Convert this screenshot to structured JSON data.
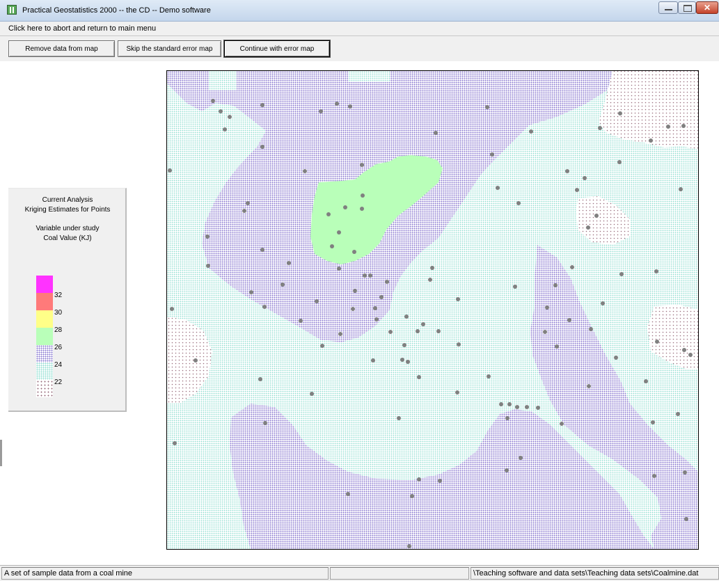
{
  "window": {
    "title": "Practical Geostatistics 2000 -- the CD  -- Demo software"
  },
  "abort_bar": {
    "text": "Click here to abort and return to main menu"
  },
  "toolbar": {
    "buttons": [
      "Remove data from map",
      "Skip the standard error map",
      "Continue with error map"
    ]
  },
  "legend_panel": {
    "heading": "Current Analysis",
    "analysis": "Kriging Estimates for Points",
    "variable_heading": "Variable under study",
    "variable": "Coal Value (KJ)",
    "ticks": [
      "32",
      "30",
      "28",
      "26",
      "24",
      "22"
    ],
    "colors": {
      "above_32": "#ff33ff",
      "30_32": "#ff7a7a",
      "28_30": "#ffff88",
      "26_28": "#b9ffb9",
      "24_26": "#8a7ad0",
      "22_24": "#8fded0",
      "below_22": "#9a6e7e"
    }
  },
  "map": {
    "sample_point_color": "#808080",
    "sample_points": [
      [
        244,
        245
      ],
      [
        247,
        444
      ],
      [
        251,
        637
      ],
      [
        281,
        518
      ],
      [
        298,
        340
      ],
      [
        299,
        382
      ],
      [
        306,
        145
      ],
      [
        317,
        160
      ],
      [
        323,
        186
      ],
      [
        330,
        168
      ],
      [
        351,
        303
      ],
      [
        356,
        292
      ],
      [
        361,
        420
      ],
      [
        374,
        545
      ],
      [
        377,
        151
      ],
      [
        377,
        211
      ],
      [
        377,
        359
      ],
      [
        380,
        441
      ],
      [
        381,
        608
      ],
      [
        406,
        409
      ],
      [
        415,
        378
      ],
      [
        438,
        246
      ],
      [
        432,
        461
      ],
      [
        448,
        566
      ],
      [
        455,
        433
      ],
      [
        461,
        160
      ],
      [
        463,
        497
      ],
      [
        472,
        308
      ],
      [
        477,
        354
      ],
      [
        484,
        149
      ],
      [
        487,
        334
      ],
      [
        487,
        386
      ],
      [
        489,
        480
      ],
      [
        496,
        298
      ],
      [
        500,
        710
      ],
      [
        503,
        153
      ],
      [
        507,
        444
      ],
      [
        509,
        362
      ],
      [
        510,
        418
      ],
      [
        520,
        237
      ],
      [
        521,
        281
      ],
      [
        520,
        300
      ],
      [
        524,
        396
      ],
      [
        532,
        396
      ],
      [
        536,
        518
      ],
      [
        539,
        443
      ],
      [
        541,
        459
      ],
      [
        548,
        427
      ],
      [
        556,
        405
      ],
      [
        561,
        477
      ],
      [
        573,
        601
      ],
      [
        578,
        517
      ],
      [
        581,
        496
      ],
      [
        584,
        455
      ],
      [
        586,
        520
      ],
      [
        588,
        785
      ],
      [
        592,
        713
      ],
      [
        600,
        476
      ],
      [
        602,
        542
      ],
      [
        602,
        689
      ],
      [
        608,
        466
      ],
      [
        618,
        402
      ],
      [
        621,
        385
      ],
      [
        626,
        191
      ],
      [
        630,
        476
      ],
      [
        632,
        691
      ],
      [
        657,
        564
      ],
      [
        658,
        430
      ],
      [
        659,
        495
      ],
      [
        700,
        154
      ],
      [
        702,
        541
      ],
      [
        707,
        222
      ],
      [
        715,
        270
      ],
      [
        720,
        581
      ],
      [
        728,
        676
      ],
      [
        729,
        601
      ],
      [
        732,
        581
      ],
      [
        740,
        412
      ],
      [
        743,
        585
      ],
      [
        745,
        292
      ],
      [
        748,
        658
      ],
      [
        757,
        585
      ],
      [
        763,
        189
      ],
      [
        773,
        586
      ],
      [
        783,
        477
      ],
      [
        786,
        442
      ],
      [
        798,
        410
      ],
      [
        800,
        498
      ],
      [
        807,
        609
      ],
      [
        815,
        246
      ],
      [
        818,
        460
      ],
      [
        822,
        384
      ],
      [
        829,
        273
      ],
      [
        840,
        256
      ],
      [
        845,
        327
      ],
      [
        846,
        555
      ],
      [
        849,
        473
      ],
      [
        857,
        310
      ],
      [
        862,
        184
      ],
      [
        866,
        436
      ],
      [
        885,
        514
      ],
      [
        890,
        233
      ],
      [
        891,
        163
      ],
      [
        893,
        394
      ],
      [
        928,
        548
      ],
      [
        935,
        202
      ],
      [
        938,
        607
      ],
      [
        940,
        684
      ],
      [
        943,
        390
      ],
      [
        944,
        491
      ],
      [
        960,
        182
      ],
      [
        982,
        181
      ],
      [
        978,
        272
      ],
      [
        983,
        503
      ],
      [
        992,
        510
      ],
      [
        974,
        595
      ],
      [
        984,
        679
      ],
      [
        986,
        746
      ]
    ]
  }
}
